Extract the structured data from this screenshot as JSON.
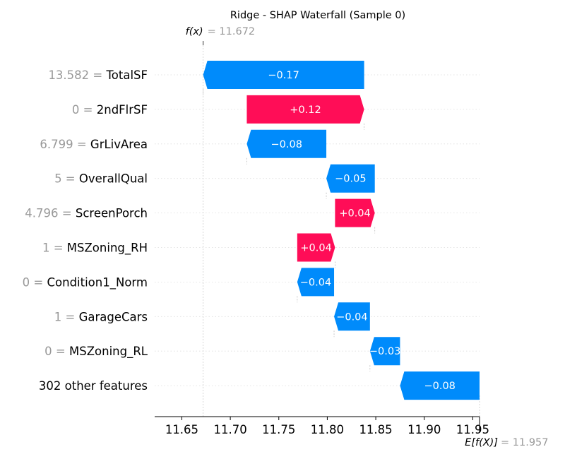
{
  "chart_data": {
    "type": "waterfall",
    "title": "Ridge - SHAP Waterfall (Sample 0)",
    "fx": {
      "label": "f(x)",
      "value_text": "= 11.672",
      "value": 11.672
    },
    "efx": {
      "label": "E[f(X)]",
      "value_text": "= 11.957",
      "value": 11.957
    },
    "xlim": [
      11.622,
      11.957
    ],
    "xticks": [
      11.65,
      11.7,
      11.75,
      11.8,
      11.85,
      11.9,
      11.95
    ],
    "xtick_labels": [
      "11.65",
      "11.70",
      "11.75",
      "11.80",
      "11.85",
      "11.90",
      "11.95"
    ],
    "grid": "dotted-horizontal",
    "colors": {
      "positive": "#ff0d57",
      "negative": "#008bfb",
      "value_text": "#999999",
      "label_text": "#000000"
    },
    "features": [
      {
        "value": "13.582 =",
        "name": "TotalSF",
        "shap": -0.17,
        "shap_label": "−0.17",
        "start": 11.838,
        "end": 11.672
      },
      {
        "value": "0 =",
        "name": "2ndFlrSF",
        "shap": 0.12,
        "shap_label": "+0.12",
        "start": 11.717,
        "end": 11.838
      },
      {
        "value": "6.799 =",
        "name": "GrLivArea",
        "shap": -0.08,
        "shap_label": "−0.08",
        "start": 11.799,
        "end": 11.717
      },
      {
        "value": "5 =",
        "name": "OverallQual",
        "shap": -0.05,
        "shap_label": "−0.05",
        "start": 11.849,
        "end": 11.799
      },
      {
        "value": "4.796 =",
        "name": "ScreenPorch",
        "shap": 0.04,
        "shap_label": "+0.04",
        "start": 11.808,
        "end": 11.849
      },
      {
        "value": "1 =",
        "name": "MSZoning_RH",
        "shap": 0.04,
        "shap_label": "+0.04",
        "start": 11.769,
        "end": 11.808
      },
      {
        "value": "0 =",
        "name": "Condition1_Norm",
        "shap": -0.04,
        "shap_label": "−0.04",
        "start": 11.807,
        "end": 11.769
      },
      {
        "value": "1 =",
        "name": "GarageCars",
        "shap": -0.04,
        "shap_label": "−0.04",
        "start": 11.844,
        "end": 11.807
      },
      {
        "value": "0 =",
        "name": "MSZoning_RL",
        "shap": -0.03,
        "shap_label": "−0.03",
        "start": 11.875,
        "end": 11.844
      },
      {
        "value": "",
        "name": "302 other features",
        "shap": -0.08,
        "shap_label": "−0.08",
        "start": 11.957,
        "end": 11.875
      }
    ]
  }
}
